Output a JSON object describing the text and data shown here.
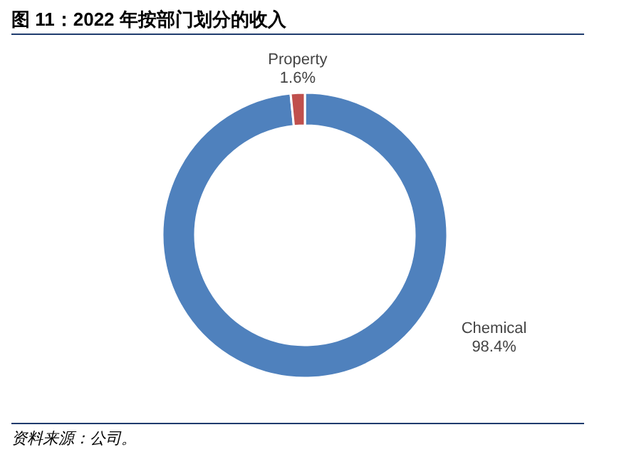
{
  "chart_data": {
    "type": "donut",
    "title": "图 11：2022 年按部门划分的收入",
    "categories": [
      "Chemical",
      "Property"
    ],
    "values": [
      98.4,
      1.6
    ],
    "colors": [
      "#4f81bd",
      "#c0504d"
    ],
    "value_labels": [
      "98.4%",
      "1.6%"
    ],
    "annotations": [
      "资料来源：公司。"
    ]
  }
}
